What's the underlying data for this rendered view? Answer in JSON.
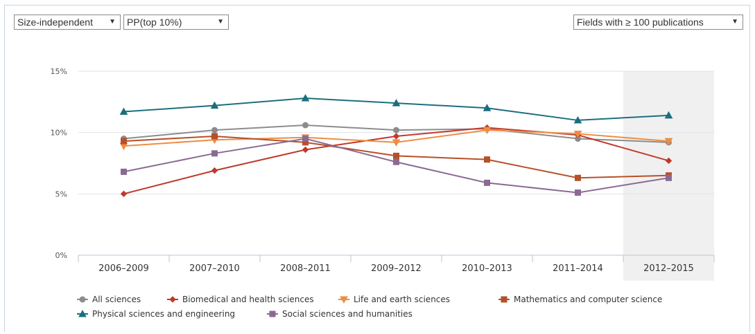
{
  "controls": {
    "size_select": {
      "value": "Size-independent",
      "arrow": "▼"
    },
    "indicator_select": {
      "value": "PP(top 10%)",
      "arrow": "▼"
    },
    "fields_select": {
      "value": "Fields with ≥ 100 publications",
      "arrow": "▼"
    }
  },
  "chart_data": {
    "type": "line",
    "title": "",
    "xlabel": "",
    "ylabel": "",
    "categories": [
      "2006–2009",
      "2007–2010",
      "2008–2011",
      "2009–2012",
      "2010–2013",
      "2011–2014",
      "2012–2015"
    ],
    "highlighted_category": "2012–2015",
    "y_ticks": [
      "0%",
      "5%",
      "10%",
      "15%"
    ],
    "ylim": [
      0,
      15
    ],
    "grid": true,
    "legend_position": "bottom-left",
    "series": [
      {
        "name": "All sciences",
        "color": "#8c8c8c",
        "marker": "circle",
        "values": [
          9.5,
          10.2,
          10.6,
          10.2,
          10.3,
          9.5,
          9.2
        ]
      },
      {
        "name": "Biomedical and health sciences",
        "color": "#c0392b",
        "marker": "diamond",
        "values": [
          5.0,
          6.9,
          8.6,
          9.7,
          10.4,
          9.8,
          7.7
        ]
      },
      {
        "name": "Life and earth sciences",
        "color": "#ef8c40",
        "marker": "triangle-down",
        "values": [
          8.9,
          9.4,
          9.6,
          9.2,
          10.2,
          9.9,
          9.3
        ]
      },
      {
        "name": "Mathematics and computer science",
        "color": "#b5502a",
        "marker": "square",
        "values": [
          9.3,
          9.7,
          9.2,
          8.1,
          7.8,
          6.3,
          6.5
        ]
      },
      {
        "name": "Physical sciences and engineering",
        "color": "#1b6f7d",
        "marker": "triangle-up",
        "values": [
          11.7,
          12.2,
          12.8,
          12.4,
          12.0,
          11.0,
          11.4
        ]
      },
      {
        "name": "Social sciences and humanities",
        "color": "#8a6a93",
        "marker": "square",
        "values": [
          6.8,
          8.3,
          9.5,
          7.6,
          5.9,
          5.1,
          6.3
        ]
      }
    ]
  }
}
